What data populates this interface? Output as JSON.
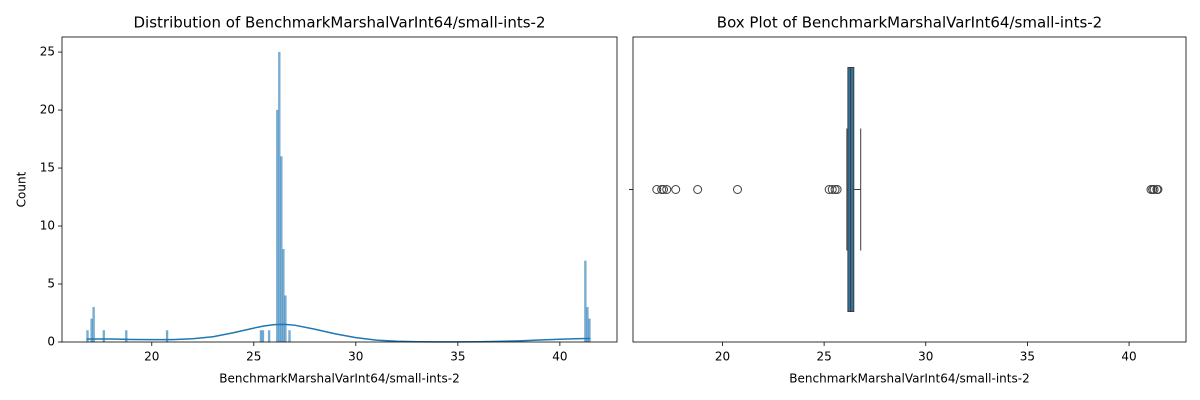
{
  "chart_data": [
    {
      "type": "histogram",
      "title": "Distribution of BenchmarkMarshalVarInt64/small-ints-2",
      "xlabel": "BenchmarkMarshalVarInt64/small-ints-2",
      "ylabel": "Count",
      "color": "#1f77b4",
      "bins": [
        16.8,
        16.9,
        17,
        17.1,
        17.2,
        17.3,
        17.4,
        17.5,
        17.6,
        17.7,
        17.8,
        17.9,
        18,
        18.1,
        18.2,
        18.3,
        18.4,
        18.5,
        18.6,
        18.7,
        18.8,
        18.9,
        19,
        19.1,
        19.2,
        19.3,
        19.4,
        19.5,
        19.6,
        19.7,
        19.8,
        19.9,
        20,
        20.1,
        20.2,
        20.3,
        20.4,
        20.5,
        20.6,
        20.7,
        20.8,
        20.9,
        21,
        21.1,
        21.2,
        21.3,
        21.4,
        21.5,
        21.6,
        21.7,
        21.8,
        21.9,
        22,
        22.1,
        22.2,
        22.3,
        22.4,
        22.5,
        22.6,
        22.7,
        22.8,
        22.9,
        23,
        23.1,
        23.2,
        23.3,
        23.4,
        23.5,
        23.6,
        23.7,
        23.8,
        23.9,
        24,
        24.1,
        24.2,
        24.3,
        24.4,
        24.5,
        24.6,
        24.7,
        24.8,
        24.9,
        25,
        25.1,
        25.2,
        25.3,
        25.4,
        25.5,
        25.6,
        25.7,
        25.8,
        25.9,
        26,
        26.1,
        26.2,
        26.3,
        26.4,
        26.5,
        26.6,
        26.7,
        26.8,
        26.9,
        27,
        27.1,
        27.2,
        27.3,
        27.4,
        27.5,
        27.6,
        27.7,
        27.8,
        27.9,
        28,
        28.1,
        28.2,
        28.3,
        28.4,
        28.5,
        28.6,
        28.7,
        28.8,
        28.9,
        29,
        29.1,
        29.2,
        29.3,
        29.4,
        29.5,
        29.6,
        29.7,
        29.8,
        29.9,
        30,
        30.1,
        30.2,
        30.3,
        30.4,
        30.5,
        30.6,
        30.7,
        30.8,
        30.9,
        31,
        31.1,
        31.2,
        31.3,
        31.4,
        31.5,
        31.6,
        31.7,
        31.8,
        31.9,
        32,
        32.1,
        32.2,
        32.3,
        32.4,
        32.5,
        32.6,
        32.7,
        32.8,
        32.9,
        33,
        33.1,
        33.2,
        33.3,
        33.4,
        33.5,
        33.6,
        33.7,
        33.8,
        33.9,
        34,
        34.1,
        34.2,
        34.3,
        34.4,
        34.5,
        34.6,
        34.7,
        34.8,
        34.9,
        35,
        35.1,
        35.2,
        35.3,
        35.4,
        35.5,
        35.6,
        35.7,
        35.8,
        35.9,
        36,
        36.1,
        36.2,
        36.3,
        36.4,
        36.5,
        36.6,
        36.7,
        36.8,
        36.9,
        37,
        37.1,
        37.2,
        37.3,
        37.4,
        37.5,
        37.6,
        37.7,
        37.8,
        37.9,
        38,
        38.1,
        38.2,
        38.3,
        38.4,
        38.5,
        38.6,
        38.7,
        38.8,
        38.9,
        39,
        39.1,
        39.2,
        39.3,
        39.4,
        39.5,
        39.6,
        39.7,
        39.8,
        39.9,
        40,
        40.1,
        40.2,
        40.3,
        40.4,
        40.5,
        40.6,
        40.7,
        40.8,
        40.9,
        41,
        41.1,
        41.2,
        41.3,
        41.4,
        41.5
      ],
      "counts": [
        1,
        0,
        2,
        3,
        0,
        0,
        0,
        0,
        1,
        0,
        0,
        0,
        0,
        0,
        0,
        0,
        0,
        0,
        0,
        1,
        0,
        0,
        0,
        0,
        0,
        0,
        0,
        0,
        0,
        0,
        0,
        0,
        0,
        0,
        0,
        0,
        0,
        0,
        0,
        1,
        0,
        0,
        0,
        0,
        0,
        0,
        0,
        0,
        0,
        0,
        0,
        0,
        0,
        0,
        0,
        0,
        0,
        0,
        0,
        0,
        0,
        0,
        0,
        0,
        0,
        0,
        0,
        0,
        0,
        0,
        0,
        0,
        0,
        0,
        0,
        0,
        0,
        0,
        0,
        0,
        0,
        0,
        0,
        0,
        0,
        1,
        1,
        0,
        0,
        1,
        0,
        0,
        0,
        20,
        25,
        16,
        8,
        4,
        0,
        1,
        0,
        0,
        0,
        0,
        0,
        0,
        0,
        0,
        0,
        0,
        0,
        0,
        0,
        0,
        0,
        0,
        0,
        0,
        0,
        0,
        0,
        0,
        0,
        0,
        0,
        0,
        0,
        0,
        0,
        0,
        0,
        0,
        0,
        0,
        0,
        0,
        0,
        0,
        0,
        0,
        0,
        0,
        0,
        0,
        0,
        0,
        0,
        0,
        0,
        0,
        0,
        0,
        0,
        0,
        0,
        0,
        0,
        0,
        0,
        0,
        0,
        0,
        0,
        0,
        0,
        0,
        0,
        0,
        0,
        0,
        0,
        0,
        0,
        0,
        0,
        0,
        0,
        0,
        0,
        0,
        0,
        0,
        0,
        0,
        0,
        0,
        0,
        0,
        0,
        0,
        0,
        0,
        0,
        0,
        0,
        0,
        0,
        0,
        0,
        0,
        0,
        0,
        0,
        0,
        0,
        0,
        0,
        0,
        0,
        0,
        0,
        0,
        0,
        0,
        0,
        0,
        0,
        0,
        0,
        0,
        0,
        0,
        0,
        0,
        0,
        0,
        0,
        0,
        0,
        0,
        0,
        0,
        0,
        0,
        0,
        0,
        0,
        0,
        0,
        0,
        0,
        0,
        0,
        0,
        7,
        3,
        2
      ],
      "kde": {
        "x": [
          16.8,
          17,
          18,
          19,
          20,
          21,
          22,
          23,
          24,
          25,
          25.5,
          26,
          26.5,
          27,
          28,
          29,
          30,
          31,
          32,
          33,
          34,
          35,
          36,
          37,
          38,
          39,
          40,
          41,
          41.5
        ],
        "values": [
          0.25,
          0.26,
          0.26,
          0.22,
          0.2,
          0.2,
          0.28,
          0.45,
          0.8,
          1.2,
          1.38,
          1.5,
          1.52,
          1.45,
          1.1,
          0.7,
          0.38,
          0.16,
          0.06,
          0.02,
          0.01,
          0.01,
          0.02,
          0.05,
          0.1,
          0.17,
          0.24,
          0.29,
          0.3
        ]
      },
      "xlim": [
        15.6,
        42.8
      ],
      "xticks": [
        20,
        25,
        30,
        35,
        40
      ],
      "ylim": [
        0,
        26.3
      ],
      "yticks": [
        0,
        5,
        10,
        15,
        20,
        25
      ]
    },
    {
      "type": "box",
      "title": "Box Plot of BenchmarkMarshalVarInt64/small-ints-2",
      "xlabel": "BenchmarkMarshalVarInt64/small-ints-2",
      "color": "#3274a1",
      "whisker_low": 26.12,
      "q1": 26.17,
      "median": 26.3,
      "q3": 26.46,
      "whisker_high": 26.8,
      "outliers": [
        16.77,
        17.01,
        17.1,
        17.26,
        17.7,
        18.78,
        20.74,
        25.25,
        25.4,
        25.54,
        25.64,
        41.08,
        41.16,
        41.23,
        41.37,
        41.42
      ],
      "xlim": [
        15.6,
        42.8
      ],
      "xticks": [
        20,
        25,
        30,
        35,
        40
      ]
    }
  ]
}
